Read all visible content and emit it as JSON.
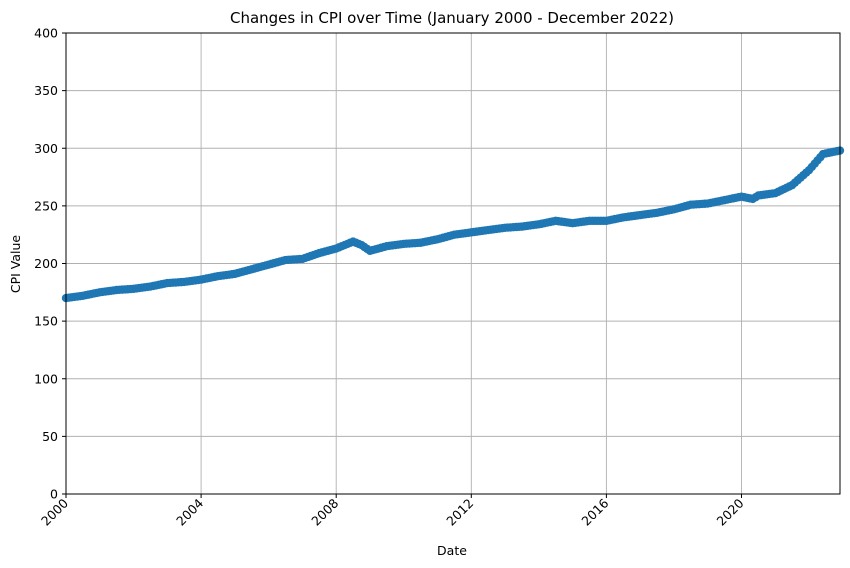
{
  "chart_data": {
    "type": "line",
    "title": "Changes in CPI over Time (January 2000 - December 2022)",
    "xlabel": "Date",
    "ylabel": "CPI Value",
    "xlim": [
      "2000-01",
      "2022-12"
    ],
    "ylim": [
      0,
      400
    ],
    "x_ticks": [
      "2000",
      "2004",
      "2008",
      "2012",
      "2016",
      "2020"
    ],
    "y_ticks": [
      0,
      50,
      100,
      150,
      200,
      250,
      300,
      350,
      400
    ],
    "grid": true,
    "color": "#1f77b4",
    "marker": "circle",
    "series": [
      {
        "x": [
          "2000-01",
          "2000-07",
          "2001-01",
          "2001-07",
          "2002-01",
          "2002-07",
          "2003-01",
          "2003-07",
          "2004-01",
          "2004-07",
          "2005-01",
          "2005-07",
          "2006-01",
          "2006-07",
          "2007-01",
          "2007-07",
          "2008-01",
          "2008-04",
          "2008-07",
          "2008-10",
          "2009-01",
          "2009-07",
          "2010-01",
          "2010-07",
          "2011-01",
          "2011-07",
          "2012-01",
          "2012-07",
          "2013-01",
          "2013-07",
          "2014-01",
          "2014-07",
          "2015-01",
          "2015-07",
          "2016-01",
          "2016-07",
          "2017-01",
          "2017-07",
          "2018-01",
          "2018-07",
          "2019-01",
          "2019-07",
          "2020-01",
          "2020-05",
          "2020-07",
          "2021-01",
          "2021-07",
          "2022-01",
          "2022-06",
          "2022-12"
        ],
        "values": [
          170,
          172,
          175,
          177,
          178,
          180,
          183,
          184,
          186,
          189,
          191,
          195,
          199,
          203,
          204,
          209,
          213,
          216,
          219,
          216,
          211,
          215,
          217,
          218,
          221,
          225,
          227,
          229,
          231,
          232,
          234,
          237,
          235,
          237,
          237,
          240,
          242,
          244,
          247,
          251,
          252,
          255,
          258,
          256,
          259,
          261,
          268,
          281,
          295,
          298
        ]
      }
    ]
  }
}
